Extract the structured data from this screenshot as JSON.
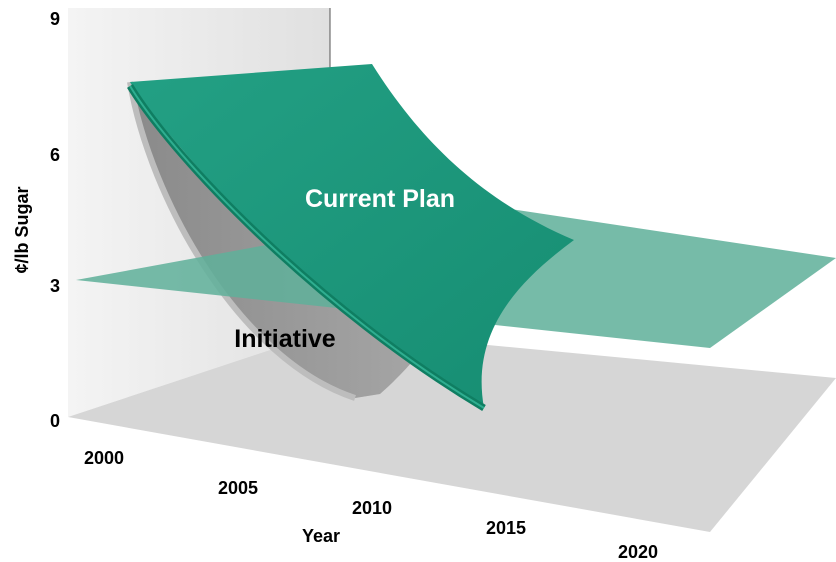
{
  "chart_data": {
    "type": "area",
    "title": "",
    "xlabel": "Year",
    "ylabel": "¢/lb Sugar",
    "x_ticks": [
      "2000",
      "2005",
      "2010",
      "2015",
      "2020"
    ],
    "y_ticks": [
      "0",
      "3",
      "6",
      "9"
    ],
    "xlim": [
      2000,
      2020
    ],
    "ylim": [
      0,
      9
    ],
    "series": [
      {
        "name": "Current Plan",
        "x": [
          2000,
          2005,
          2010,
          2015,
          2020
        ],
        "y": [
          7.5,
          4.8,
          2.6,
          0.5,
          0.0
        ],
        "color": "#1a9a7e"
      },
      {
        "name": "Initiative",
        "x": [
          2000,
          2005,
          2010,
          2015,
          2020
        ],
        "y": [
          7.4,
          3.2,
          0.6,
          0.0,
          0.0
        ],
        "color": "#9a9a9a"
      },
      {
        "name": "",
        "x": [
          2000,
          2020
        ],
        "y": [
          3.0,
          3.0
        ],
        "color": "#5fb09a"
      }
    ]
  }
}
